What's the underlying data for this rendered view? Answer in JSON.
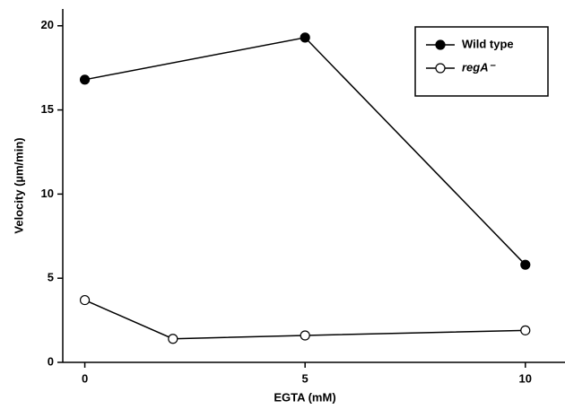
{
  "chart_data": {
    "type": "line",
    "x_label": "EGTA (mM)",
    "y_label": "Velocity (µm/min)",
    "xlim": [
      -0.5,
      10.9
    ],
    "xticks": [
      0,
      5,
      10
    ],
    "ylim": [
      0,
      21
    ],
    "yticks": [
      0,
      5,
      10,
      15,
      20
    ],
    "grid": false,
    "legend": "upper right",
    "series": [
      {
        "name": "Wild type",
        "color": "#000000",
        "marker_fill": "#000000",
        "x": [
          0,
          5,
          10
        ],
        "values": [
          16.8,
          19.3,
          5.8
        ]
      },
      {
        "name": "regA⁻",
        "color": "#000000",
        "marker_fill": "#ffffff",
        "x": [
          0,
          2,
          5,
          10
        ],
        "values": [
          3.7,
          1.4,
          1.6,
          1.9
        ]
      }
    ]
  }
}
